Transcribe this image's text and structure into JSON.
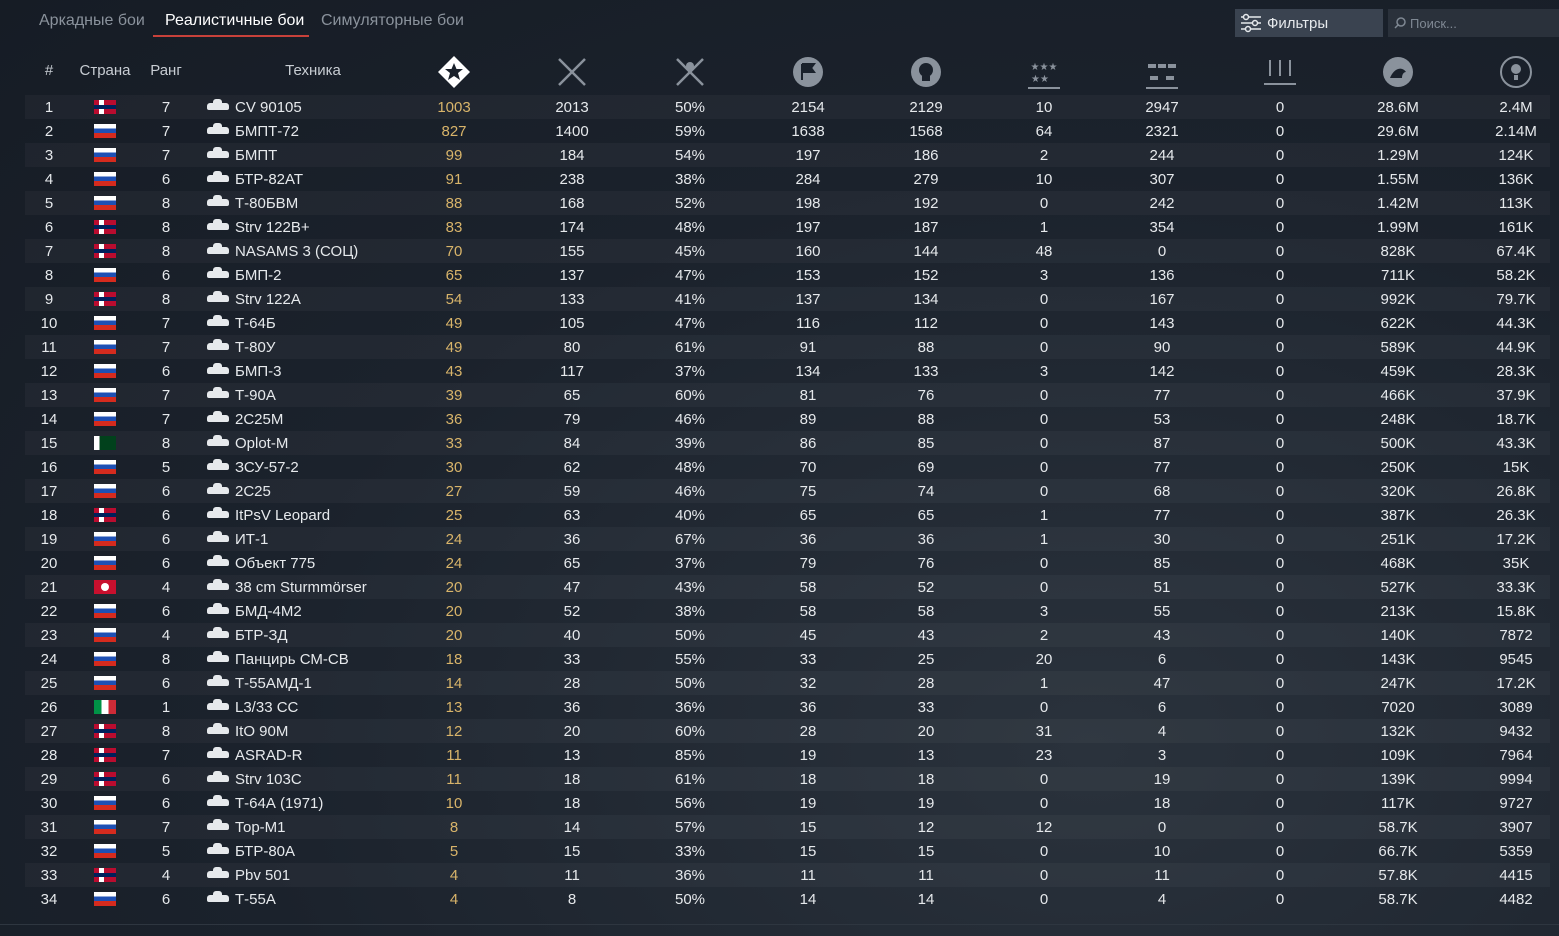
{
  "tabs": [
    "Аркадные бои",
    "Реалистичные бои",
    "Симуляторные бои"
  ],
  "filter_button": "Фильтры",
  "search_placeholder": "Поиск...",
  "table": {
    "headers": [
      "#",
      "Страна",
      "Ранг",
      "Техника"
    ],
    "rows": [
      [
        1,
        7,
        "CV 90105",
        1003,
        2013,
        "50%",
        2154,
        2129,
        10,
        2947,
        0,
        "28.6M",
        "2.4M"
      ],
      [
        2,
        7,
        "БМПТ-72",
        827,
        1400,
        "59%",
        1638,
        1568,
        64,
        2321,
        0,
        "29.6M",
        "2.14M"
      ],
      [
        3,
        7,
        "БМПТ",
        99,
        184,
        "54%",
        197,
        186,
        2,
        244,
        0,
        "1.29M",
        "124K"
      ],
      [
        4,
        6,
        "БТР-82АТ",
        91,
        238,
        "38%",
        284,
        279,
        10,
        307,
        0,
        "1.55M",
        "136K"
      ],
      [
        5,
        8,
        "Т-80БВМ",
        88,
        168,
        "52%",
        198,
        192,
        0,
        242,
        0,
        "1.42M",
        "113K"
      ],
      [
        6,
        8,
        "Strv 122B+",
        83,
        174,
        "48%",
        197,
        187,
        1,
        354,
        0,
        "1.99M",
        "161K"
      ],
      [
        7,
        8,
        "NASAMS 3 (СОЦ)",
        70,
        155,
        "45%",
        160,
        144,
        48,
        0,
        0,
        "828K",
        "67.4K"
      ],
      [
        8,
        6,
        "БМП-2",
        65,
        137,
        "47%",
        153,
        152,
        3,
        136,
        0,
        "711K",
        "58.2K"
      ],
      [
        9,
        8,
        "Strv 122A",
        54,
        133,
        "41%",
        137,
        134,
        0,
        167,
        0,
        "992K",
        "79.7K"
      ],
      [
        10,
        7,
        "Т-64Б",
        49,
        105,
        "47%",
        116,
        112,
        0,
        143,
        0,
        "622K",
        "44.3K"
      ],
      [
        11,
        7,
        "Т-80У",
        49,
        80,
        "61%",
        91,
        88,
        0,
        90,
        0,
        "589K",
        "44.9K"
      ],
      [
        12,
        6,
        "БМП-3",
        43,
        117,
        "37%",
        134,
        133,
        3,
        142,
        0,
        "459K",
        "28.3K"
      ],
      [
        13,
        7,
        "Т-90А",
        39,
        65,
        "60%",
        81,
        76,
        0,
        77,
        0,
        "466K",
        "37.9K"
      ],
      [
        14,
        7,
        "2С25М",
        36,
        79,
        "46%",
        89,
        88,
        0,
        53,
        0,
        "248K",
        "18.7K"
      ],
      [
        15,
        8,
        "Oplot-M",
        33,
        84,
        "39%",
        86,
        85,
        0,
        87,
        0,
        "500K",
        "43.3K"
      ],
      [
        16,
        5,
        "ЗСУ-57-2",
        30,
        62,
        "48%",
        70,
        69,
        0,
        77,
        0,
        "250K",
        "15K"
      ],
      [
        17,
        6,
        "2С25",
        27,
        59,
        "46%",
        75,
        74,
        0,
        68,
        0,
        "320K",
        "26.8K"
      ],
      [
        18,
        6,
        "ItPsV Leopard",
        25,
        63,
        "40%",
        65,
        65,
        1,
        77,
        0,
        "387K",
        "26.3K"
      ],
      [
        19,
        6,
        "ИТ-1",
        24,
        36,
        "67%",
        36,
        36,
        1,
        30,
        0,
        "251K",
        "17.2K"
      ],
      [
        20,
        6,
        "Объект 775",
        24,
        65,
        "37%",
        79,
        76,
        0,
        85,
        0,
        "468K",
        "35K"
      ],
      [
        21,
        4,
        "38 cm Sturmmörser",
        20,
        47,
        "43%",
        58,
        52,
        0,
        51,
        0,
        "527K",
        "33.3K"
      ],
      [
        22,
        6,
        "БМД-4М2",
        20,
        52,
        "38%",
        58,
        58,
        3,
        55,
        0,
        "213K",
        "15.8K"
      ],
      [
        23,
        4,
        "БТР-ЗД",
        20,
        40,
        "50%",
        45,
        43,
        2,
        43,
        0,
        "140K",
        7872
      ],
      [
        24,
        8,
        "Панцирь СМ-СВ",
        18,
        33,
        "55%",
        33,
        25,
        20,
        6,
        0,
        "143K",
        9545
      ],
      [
        25,
        6,
        "Т-55АМД-1",
        14,
        28,
        "50%",
        32,
        28,
        1,
        47,
        0,
        "247K",
        "17.2K"
      ],
      [
        26,
        1,
        "L3/33 CC",
        13,
        36,
        "36%",
        36,
        33,
        0,
        6,
        0,
        7020,
        3089
      ],
      [
        27,
        8,
        "ItO 90M",
        12,
        20,
        "60%",
        28,
        20,
        31,
        4,
        0,
        "132K",
        9432
      ],
      [
        28,
        7,
        "ASRAD-R",
        11,
        13,
        "85%",
        19,
        13,
        23,
        3,
        0,
        "109K",
        7964
      ],
      [
        29,
        6,
        "Strv 103C",
        11,
        18,
        "61%",
        18,
        18,
        0,
        19,
        0,
        "139K",
        9994
      ],
      [
        30,
        6,
        "Т-64А (1971)",
        10,
        18,
        "56%",
        19,
        19,
        0,
        18,
        0,
        "117K",
        9727
      ],
      [
        31,
        7,
        "Тор-М1",
        8,
        14,
        "57%",
        15,
        12,
        12,
        0,
        0,
        "58.7K",
        3907
      ],
      [
        32,
        5,
        "БТР-80А",
        5,
        15,
        "33%",
        15,
        15,
        0,
        10,
        0,
        "66.7K",
        5359
      ],
      [
        33,
        4,
        "Pbv 501",
        4,
        11,
        "36%",
        11,
        11,
        0,
        11,
        0,
        "57.8K",
        4415
      ],
      [
        34,
        6,
        "Т-55А",
        4,
        8,
        "50%",
        14,
        14,
        0,
        4,
        0,
        "58.7K",
        4482
      ]
    ]
  }
}
